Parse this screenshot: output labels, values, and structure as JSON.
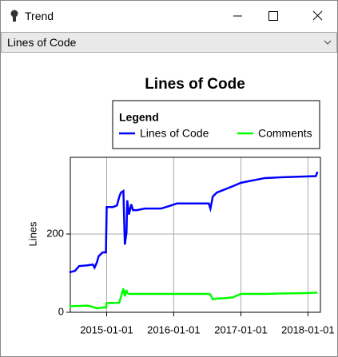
{
  "window": {
    "title": "Trend"
  },
  "dropdown": {
    "selected": "Lines of Code"
  },
  "chart_data": {
    "type": "line",
    "title": "Lines of Code",
    "ylabel": "Lines",
    "legend_title": "Legend",
    "legend": "top-right",
    "grid": true,
    "x": [
      "2014-06-12",
      "2014-07-13",
      "2014-08-04",
      "2014-09-17",
      "2014-10-18",
      "2014-10-27",
      "2014-11-09",
      "2014-11-18",
      "2014-12-10",
      "2014-12-28",
      "2015-01-01",
      "2015-02-05",
      "2015-02-26",
      "2015-03-11",
      "2015-03-20",
      "2015-04-02",
      "2015-04-10",
      "2015-04-19",
      "2015-04-23",
      "2015-05-02",
      "2015-05-15",
      "2015-05-24",
      "2015-06-15",
      "2015-07-28",
      "2015-10-23",
      "2015-12-05",
      "2016-01-18",
      "2016-04-14",
      "2016-07-10",
      "2016-07-19",
      "2016-08-01",
      "2016-08-23",
      "2016-10-05",
      "2016-11-17",
      "2017-01-01",
      "2017-02-13",
      "2017-03-28",
      "2017-05-11",
      "2017-08-06",
      "2017-12-14",
      "2018-02-13",
      "2018-02-22"
    ],
    "series": [
      {
        "name": "Lines of Code",
        "color": "#0000ff",
        "values": [
          102,
          106,
          118,
          120,
          122,
          114,
          128,
          143,
          153,
          153,
          269,
          269,
          273,
          296,
          306,
          310,
          173,
          204,
          286,
          250,
          276,
          261,
          261,
          265,
          265,
          271,
          278,
          278,
          278,
          265,
          296,
          306,
          314,
          322,
          331,
          335,
          339,
          343,
          345,
          347,
          348,
          359
        ]
      },
      {
        "name": "Comments",
        "color": "#00ff00",
        "values": [
          15,
          16,
          16,
          17,
          14,
          12,
          10,
          11,
          12,
          12,
          24,
          24,
          24,
          25,
          40,
          61,
          41,
          57,
          49,
          47,
          47,
          47,
          47,
          47,
          47,
          47,
          47,
          47,
          47,
          45,
          33,
          35,
          36,
          38,
          47,
          47,
          47,
          47,
          48,
          49,
          50,
          50
        ]
      }
    ],
    "xlim": [
      "2014-06-17",
      "2018-03-10"
    ],
    "xticks": [
      "2015-01-01",
      "2016-01-01",
      "2017-01-01",
      "2018-01-01"
    ],
    "ylim": [
      0,
      396
    ],
    "yticks": [
      0,
      200
    ]
  }
}
